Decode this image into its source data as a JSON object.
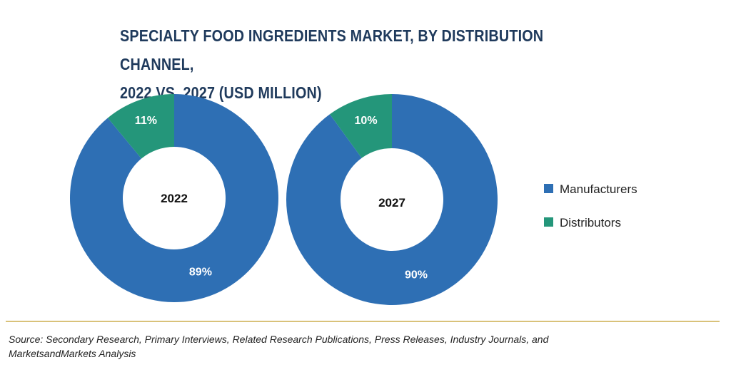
{
  "title": {
    "line1": "SPECIALTY FOOD INGREDIENTS MARKET, BY DISTRIBUTION CHANNEL,",
    "line2": "2022 VS. 2027 (USD MILLION)"
  },
  "colors": {
    "manufacturers": "#2e6fb4",
    "distributors": "#24967a",
    "divider": "#d9c27a",
    "title": "#1f3a5c"
  },
  "chart_data": [
    {
      "type": "pie",
      "style": "donut",
      "center_label": "2022",
      "categories": [
        "Manufacturers",
        "Distributors"
      ],
      "values": [
        89,
        11
      ],
      "labels": [
        "89%",
        "11%"
      ],
      "unit": "%"
    },
    {
      "type": "pie",
      "style": "donut",
      "center_label": "2027",
      "categories": [
        "Manufacturers",
        "Distributors"
      ],
      "values": [
        90,
        10
      ],
      "labels": [
        "90%",
        "10%"
      ],
      "unit": "%"
    }
  ],
  "legend": {
    "placement": "right",
    "items": [
      {
        "label": "Manufacturers",
        "color": "#2e6fb4"
      },
      {
        "label": "Distributors",
        "color": "#24967a"
      }
    ]
  },
  "source": {
    "line1": "Source: Secondary Research, Primary Interviews, Related Research Publications, Press Releases, Industry Journals, and",
    "line2": "MarketsandMarkets Analysis"
  }
}
